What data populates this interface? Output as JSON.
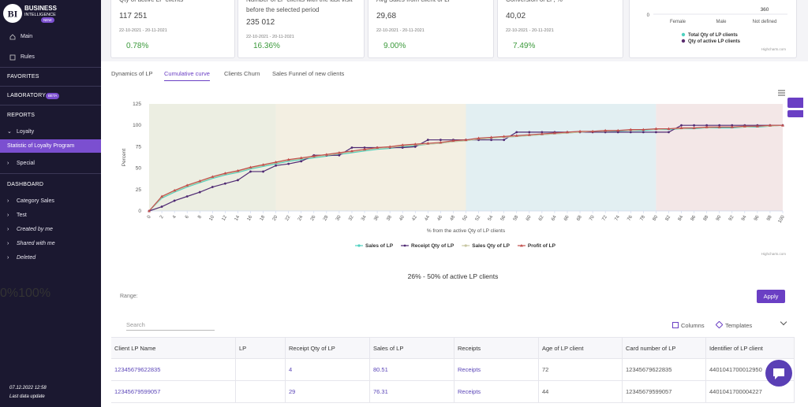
{
  "sidebar": {
    "logo": "BI",
    "brand_line1": "BUSINESS",
    "brand_line2": "INTELLIGENCE",
    "badge": "NEW",
    "main": "Main",
    "rules": "Rules",
    "favorites": "FAVORITES",
    "laboratory": "LABORATORY",
    "beta": "BETA",
    "reports": "REPORTS",
    "loyalty": "Loyalty",
    "active_item": "Statistic of Loyalty Program",
    "special": "Special",
    "dashboard": "DASHBOARD",
    "dashboard_items": [
      "Category Sales",
      "Test",
      "Created by me",
      "Shared with me",
      "Deleted"
    ],
    "update_time": "07.12.2022 12:58",
    "update_label": "Last data update"
  },
  "kpi_cards": [
    {
      "title": "Qty of active LP clients",
      "value": "117 251",
      "period": "22-10-2021 - 20-11-2021",
      "change": "0.78%"
    },
    {
      "title": "Number of LP clients with the last visit before the selected period",
      "value": "235 012",
      "period": "22-10-2021 - 20-11-2021",
      "change": "16.36%"
    },
    {
      "title": "Avg Sales from client of LP",
      "value": "29,68",
      "period": "22-10-2021 - 20-11-2021",
      "change": "9.00%"
    },
    {
      "title": "Conversion of LP, %",
      "value": "40,02",
      "period": "22-10-2021 - 20-11-2021",
      "change": "7.49%"
    }
  ],
  "gender_chart": {
    "axis_zero": "0",
    "categories": [
      "Female",
      "Male",
      "Not defined"
    ],
    "value_label": "360",
    "legend": [
      {
        "name": "Total Qty of LP clients",
        "color": "#4fd1c0"
      },
      {
        "name": "Qty of active LP clients",
        "color": "#5a2d6e"
      }
    ],
    "credits": "Highcharts.com"
  },
  "tabs": [
    {
      "label": "Dynamics of LP",
      "active": false
    },
    {
      "label": "Cumulative curve",
      "active": true
    },
    {
      "label": "Clients Churn",
      "active": false
    },
    {
      "label": "Sales Funnel of new clients",
      "active": false
    }
  ],
  "chart_data": {
    "type": "line",
    "y_label": "Percent",
    "x_label": "% from the active Qty of LP clients",
    "credits": "Highcharts.com",
    "x": [
      0,
      2,
      4,
      6,
      8,
      10,
      12,
      14,
      16,
      18,
      20,
      22,
      24,
      26,
      28,
      30,
      32,
      34,
      36,
      38,
      40,
      42,
      44,
      46,
      48,
      50,
      52,
      54,
      56,
      58,
      60,
      62,
      64,
      66,
      68,
      70,
      72,
      74,
      76,
      78,
      80,
      82,
      84,
      86,
      88,
      90,
      92,
      94,
      96,
      98,
      100
    ],
    "xlim": [
      0,
      100
    ],
    "xticks": [
      0,
      2,
      4,
      6,
      8,
      10,
      12,
      14,
      16,
      18,
      20,
      22,
      24,
      26,
      28,
      30,
      32,
      34,
      36,
      38,
      40,
      42,
      44,
      46,
      48,
      50,
      52,
      54,
      56,
      58,
      60,
      62,
      64,
      66,
      68,
      70,
      72,
      74,
      76,
      78,
      80,
      82,
      84,
      86,
      88,
      90,
      92,
      94,
      96,
      98,
      100
    ],
    "ylim": [
      0,
      125
    ],
    "yticks": [
      0,
      25,
      50,
      75,
      100,
      125
    ],
    "grid": false,
    "plot_bands": [
      {
        "from": 0,
        "to": 20,
        "color": "#eceee2"
      },
      {
        "from": 20,
        "to": 50,
        "color": "#f3efe2"
      },
      {
        "from": 50,
        "to": 80,
        "color": "#e2eff2"
      },
      {
        "from": 80,
        "to": 100,
        "color": "#f3e7e7"
      }
    ],
    "series": [
      {
        "name": "Sales of LP",
        "color": "#4fd1c0",
        "marker": "none",
        "values": [
          0,
          15,
          22,
          28,
          33,
          38,
          42,
          45,
          49,
          52,
          55,
          58,
          60,
          62,
          64,
          66,
          68,
          70,
          72,
          73,
          75,
          76,
          78,
          79,
          81,
          82,
          84,
          85,
          86,
          87,
          88,
          89,
          90,
          91,
          92,
          92,
          93,
          93,
          94,
          94,
          95,
          95,
          96,
          96,
          97,
          97,
          97,
          98,
          98,
          99,
          100
        ]
      },
      {
        "name": "Receipt Qty of LP",
        "color": "#4f2a73",
        "marker": "circle",
        "values": [
          0,
          5,
          12,
          17,
          22,
          28,
          32,
          36,
          46,
          46,
          53,
          55,
          58,
          65,
          65,
          65,
          74,
          74,
          74,
          74,
          74,
          75,
          83,
          83,
          83,
          83,
          83,
          83,
          83,
          92,
          92,
          92,
          92,
          92,
          92,
          92,
          92,
          92,
          92,
          92,
          92,
          92,
          100,
          100,
          100,
          100,
          100,
          100,
          100,
          100,
          100
        ]
      },
      {
        "name": "Sales Qty of LP",
        "color": "#c8c6a2",
        "marker": "none",
        "values": [
          0,
          16,
          23,
          29,
          34,
          39,
          43,
          46,
          50,
          53,
          56,
          59,
          61,
          63,
          65,
          67,
          69,
          71,
          73,
          74,
          76,
          77,
          78,
          79,
          81,
          82,
          84,
          85,
          86,
          87,
          88,
          89,
          90,
          91,
          92,
          93,
          93,
          94,
          94,
          95,
          95,
          96,
          96,
          97,
          97,
          98,
          98,
          98,
          99,
          99,
          100
        ]
      },
      {
        "name": "Profit of LP",
        "color": "#c0504d",
        "marker": "triangle",
        "values": [
          0,
          17,
          24,
          30,
          35,
          40,
          44,
          47,
          51,
          54,
          57,
          60,
          62,
          64,
          66,
          68,
          70,
          72,
          74,
          75,
          77,
          78,
          79,
          80,
          82,
          83,
          85,
          86,
          87,
          88,
          89,
          90,
          91,
          92,
          93,
          93,
          94,
          94,
          95,
          95,
          96,
          96,
          97,
          97,
          98,
          98,
          98,
          99,
          99,
          100,
          100
        ]
      }
    ]
  },
  "range_filter": {
    "title": "26% - 50% of active LP clients",
    "label": "Range:",
    "min": {
      "value": 0,
      "label": "0%"
    },
    "max": {
      "value": 100,
      "label": "100%"
    },
    "from": 26,
    "to": 50,
    "button": "Apply"
  },
  "table": {
    "search": "Search",
    "columns_button": "Columns",
    "templates_button": "Templates",
    "headers": [
      "Client LP Name",
      "LP",
      "Receipt Qty of LP",
      "Sales of LP",
      "Receipts",
      "Age of LP client",
      "Card number of LP",
      "Identifier of LP client"
    ],
    "rows": [
      [
        "12345679622835",
        null,
        "4",
        "80.51",
        "Receipts",
        "72",
        "12345679622835",
        "4401041700012950"
      ],
      [
        "12345679599057",
        null,
        "29",
        "76.31",
        "Receipts",
        "44",
        "12345679599057",
        "4401041700004227"
      ]
    ]
  }
}
